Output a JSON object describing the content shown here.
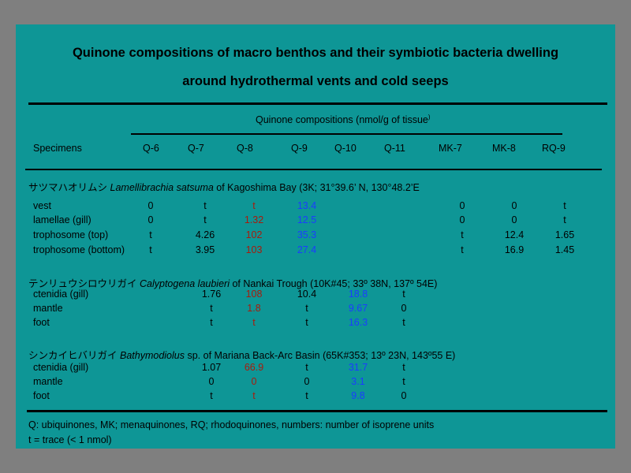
{
  "title_line1": "Quinone compositions of macro benthos and their symbiotic bacteria dwelling",
  "title_line2": "around hydrothermal vents and cold seeps",
  "subheader": "Quinone compositions (nmol/g of tissue",
  "subheader_close": ")",
  "columns": [
    "Specimens",
    "Q-6",
    "Q-7",
    "Q-8",
    "Q-9",
    "Q-10",
    "Q-11",
    "MK-7",
    "MK-8",
    "RQ-9"
  ],
  "groups": [
    {
      "jp": "サツマハオリムシ",
      "species": "Lamellibrachia satsuma",
      "locality": " of Kagoshima Bay (3K; 31°39.6’ N,   130°48.2’E",
      "rows": [
        {
          "name": "vest",
          "q6": "0",
          "q7": "t",
          "q8": "t",
          "q9": "13.4",
          "q10": "",
          "q11": "",
          "mk7": "0",
          "mk8": "0",
          "rq9": "t"
        },
        {
          "name": "lamellae (gill)",
          "q6": "0",
          "q7": "t",
          "q8": "1.32",
          "q9": "12.5",
          "q10": "",
          "q11": "",
          "mk7": "0",
          "mk8": "0",
          "rq9": "t"
        },
        {
          "name": "trophosome (top)",
          "q6": "t",
          "q7": "4.26",
          "q8": "102",
          "q9": "35.3",
          "q10": "",
          "q11": "",
          "mk7": "t",
          "mk8": "12.4",
          "rq9": "1.65"
        },
        {
          "name": "trophosome (bottom)",
          "q6": "t",
          "q7": "3.95",
          "q8": "103",
          "q9": "27.4",
          "q10": "",
          "q11": "",
          "mk7": "t",
          "mk8": "16.9",
          "rq9": "1.45"
        }
      ]
    },
    {
      "jp": "テンリュウシロウリガイ",
      "species": "Calyptogena laubieri",
      "locality": " of Nankai Trough (10K#45; 33º 38N, 137º 54E)",
      "rows": [
        {
          "name": "ctenidia (gill)",
          "q7": "1.76",
          "q8": "108",
          "q9": "10.4",
          "q10": "18.8",
          "q11": "t"
        },
        {
          "name": "mantle",
          "q7": "t",
          "q8": "1.8",
          "q9": "t",
          "q10": "9.67",
          "q11": "0"
        },
        {
          "name": "foot",
          "q7": "t",
          "q8": "t",
          "q9": "t",
          "q10": "16.3",
          "q11": "t"
        }
      ]
    },
    {
      "jp": "シンカイヒバリガイ",
      "species": "Bathymodiolus",
      "locality": " sp. of Mariana Back-Arc Basin (65K#353; 13º 23N, 143º55 E)",
      "rows": [
        {
          "name": "ctenidia (gill)",
          "q7": "1.07",
          "q8": "66.9",
          "q9": "t",
          "q10": "31.7",
          "q11": "t"
        },
        {
          "name": "mantle",
          "q7": "0",
          "q8": "0",
          "q9": "0",
          "q10": "3.1",
          "q11": "t"
        },
        {
          "name": "foot",
          "q7": "t",
          "q8": "t",
          "q9": "t",
          "q10": "9.8",
          "q11": "0"
        }
      ]
    }
  ],
  "footnote1": "Q: ubiquinones, MK; menaquinones, RQ; rhodoquinones, numbers: number of isoprene units",
  "footnote2": "t = trace (< 1 nmol)",
  "colors": {
    "background": "#7f7f7f",
    "slide": "#0e9696",
    "red": "#a81b0c",
    "blue": "#1c3cff"
  }
}
